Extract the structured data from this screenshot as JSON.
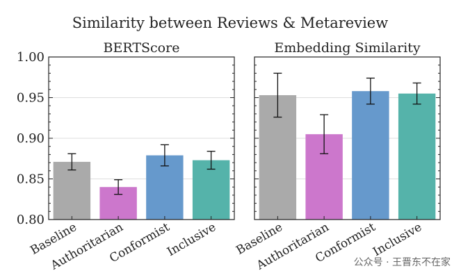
{
  "suptitle": "Similarity between Reviews & Metareview",
  "watermark": "公众号 · 王晋东不在家",
  "chart_data": [
    {
      "type": "bar",
      "title": "BERTScore",
      "categories": [
        "Baseline",
        "Authoritarian",
        "Conformist",
        "Inclusive"
      ],
      "values": [
        0.871,
        0.84,
        0.879,
        0.873
      ],
      "errors": [
        0.01,
        0.009,
        0.013,
        0.011
      ],
      "colors": [
        "#aaaaaa",
        "#cc77cc",
        "#6699cc",
        "#55b3aa"
      ],
      "ylim": [
        0.8,
        1.0
      ],
      "yticks": [
        "0.80",
        "0.85",
        "0.90",
        "0.95",
        "1.00"
      ],
      "ytick_values": [
        0.8,
        0.85,
        0.9,
        0.95,
        1.0
      ],
      "grid": true
    },
    {
      "type": "bar",
      "title": "Embedding Similarity",
      "categories": [
        "Baseline",
        "Authoritarian",
        "Conformist",
        "Inclusive"
      ],
      "values": [
        0.953,
        0.905,
        0.958,
        0.955
      ],
      "errors": [
        0.027,
        0.024,
        0.016,
        0.013
      ],
      "colors": [
        "#aaaaaa",
        "#cc77cc",
        "#6699cc",
        "#55b3aa"
      ],
      "ylim": [
        0.8,
        1.0
      ],
      "ytick_values": [
        0.8,
        0.85,
        0.9,
        0.95,
        1.0
      ],
      "grid": true
    }
  ]
}
